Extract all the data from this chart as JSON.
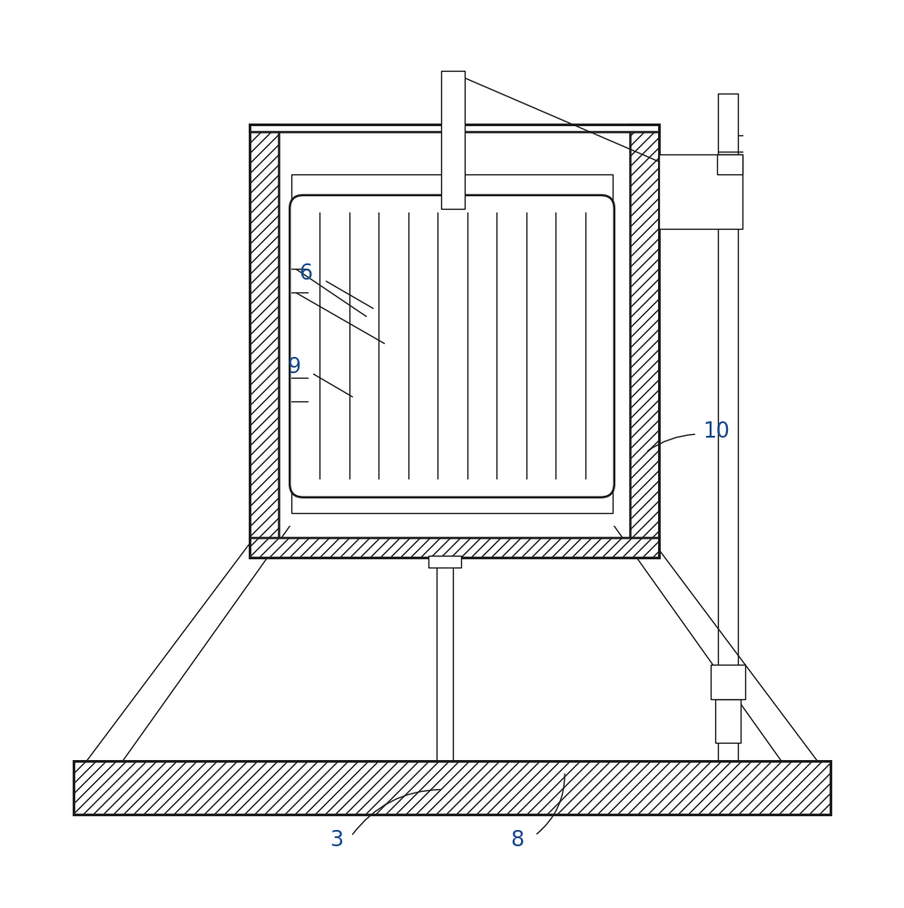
{
  "bg_color": "#ffffff",
  "line_color": "#1a1a1a",
  "label_color": "#1a4a8a",
  "fig_width": 9.96,
  "fig_height": 10.0
}
